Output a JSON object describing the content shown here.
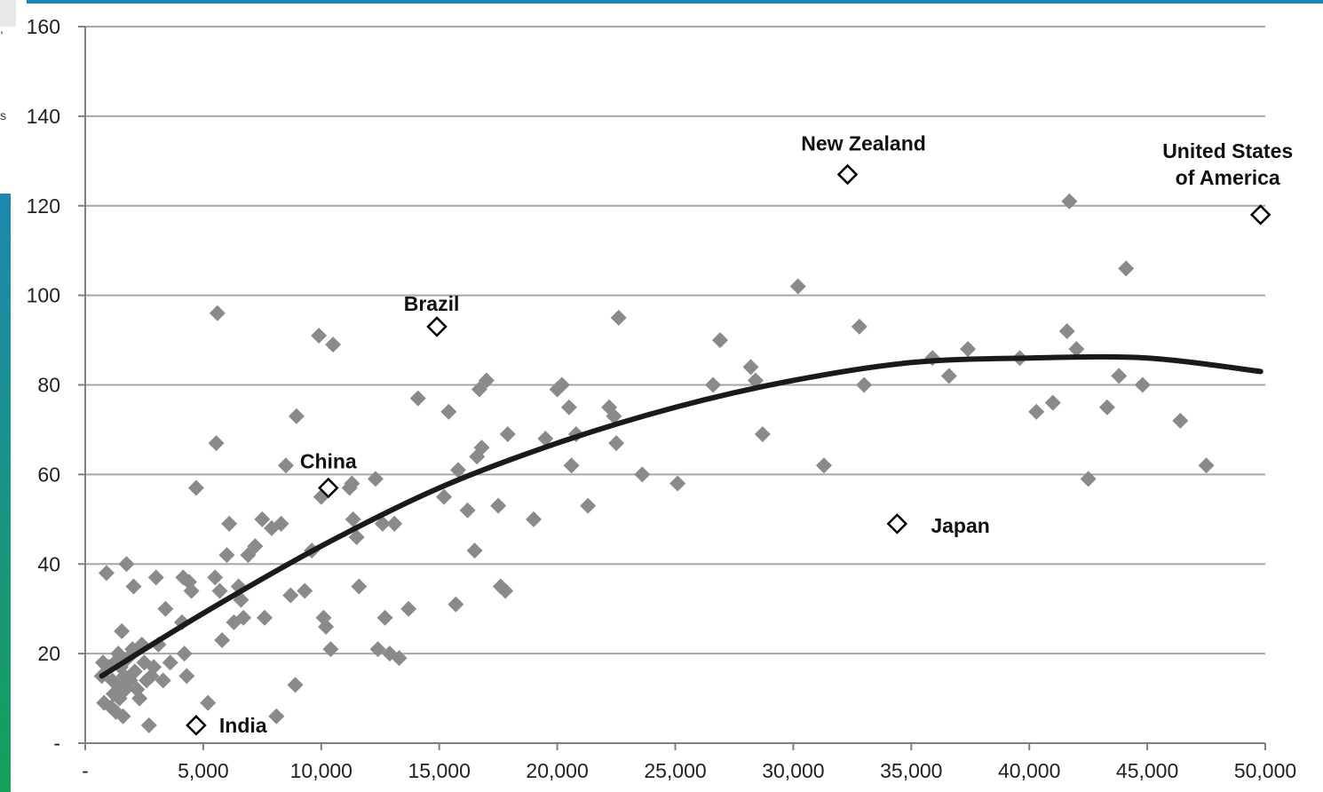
{
  "page": {
    "edge_fragment_1": ",",
    "edge_fragment_2": "s"
  },
  "colors": {
    "grid": "#a6a6a6",
    "axis": "#7f7f7f",
    "points": "#8a8a8a",
    "highlight_stroke": "#000000",
    "trend": "#1a1a1a",
    "accent_bar": "#1b86b3"
  },
  "chart_data": {
    "type": "scatter",
    "xlim": [
      0,
      50000
    ],
    "ylim": [
      0,
      160
    ],
    "grid": true,
    "x_ticks": [
      {
        "value": 0,
        "label": "-"
      },
      {
        "value": 5000,
        "label": "5,000"
      },
      {
        "value": 10000,
        "label": "10,000"
      },
      {
        "value": 15000,
        "label": "15,000"
      },
      {
        "value": 20000,
        "label": "20,000"
      },
      {
        "value": 25000,
        "label": "25,000"
      },
      {
        "value": 30000,
        "label": "30,000"
      },
      {
        "value": 35000,
        "label": "35,000"
      },
      {
        "value": 40000,
        "label": "40,000"
      },
      {
        "value": 45000,
        "label": "45,000"
      },
      {
        "value": 50000,
        "label": "50,000"
      }
    ],
    "y_ticks": [
      {
        "value": 0,
        "label": "-"
      },
      {
        "value": 20,
        "label": "20"
      },
      {
        "value": 40,
        "label": "40"
      },
      {
        "value": 60,
        "label": "60"
      },
      {
        "value": 80,
        "label": "80"
      },
      {
        "value": 100,
        "label": "100"
      },
      {
        "value": 120,
        "label": "120"
      },
      {
        "value": 140,
        "label": "140"
      },
      {
        "value": 160,
        "label": "160"
      }
    ],
    "points": [
      [
        700,
        15
      ],
      [
        750,
        18
      ],
      [
        800,
        9
      ],
      [
        900,
        38
      ],
      [
        1000,
        17
      ],
      [
        1100,
        8
      ],
      [
        1150,
        14
      ],
      [
        1200,
        11
      ],
      [
        1250,
        18
      ],
      [
        1300,
        7
      ],
      [
        1350,
        13
      ],
      [
        1400,
        20
      ],
      [
        1450,
        10
      ],
      [
        1500,
        17
      ],
      [
        1550,
        25
      ],
      [
        1600,
        6
      ],
      [
        1650,
        15
      ],
      [
        1700,
        12
      ],
      [
        1750,
        40
      ],
      [
        1800,
        19
      ],
      [
        1900,
        14
      ],
      [
        2000,
        21
      ],
      [
        2050,
        35
      ],
      [
        2100,
        16
      ],
      [
        2200,
        12
      ],
      [
        2300,
        10
      ],
      [
        2400,
        22
      ],
      [
        2500,
        18
      ],
      [
        2600,
        14
      ],
      [
        2700,
        4
      ],
      [
        2800,
        15
      ],
      [
        2900,
        17
      ],
      [
        3000,
        37
      ],
      [
        3100,
        22
      ],
      [
        3300,
        14
      ],
      [
        3400,
        30
      ],
      [
        3600,
        18
      ],
      [
        4100,
        27
      ],
      [
        4150,
        37
      ],
      [
        4200,
        20
      ],
      [
        4300,
        15
      ],
      [
        4400,
        36
      ],
      [
        4500,
        34
      ],
      [
        4700,
        57
      ],
      [
        5200,
        9
      ],
      [
        5500,
        37
      ],
      [
        5550,
        67
      ],
      [
        5600,
        96
      ],
      [
        5700,
        34
      ],
      [
        5800,
        23
      ],
      [
        6000,
        42
      ],
      [
        6100,
        49
      ],
      [
        6300,
        27
      ],
      [
        6500,
        35
      ],
      [
        6600,
        32
      ],
      [
        6700,
        28
      ],
      [
        6900,
        42
      ],
      [
        7200,
        44
      ],
      [
        7500,
        50
      ],
      [
        7600,
        28
      ],
      [
        7900,
        48
      ],
      [
        8100,
        6
      ],
      [
        8300,
        49
      ],
      [
        8500,
        62
      ],
      [
        8700,
        33
      ],
      [
        8900,
        13
      ],
      [
        8950,
        73
      ],
      [
        9300,
        34
      ],
      [
        9600,
        43
      ],
      [
        9900,
        91
      ],
      [
        10000,
        55
      ],
      [
        10100,
        28
      ],
      [
        10200,
        26
      ],
      [
        10400,
        21
      ],
      [
        10500,
        89
      ],
      [
        11200,
        57
      ],
      [
        11300,
        58
      ],
      [
        11350,
        50
      ],
      [
        11500,
        46
      ],
      [
        11600,
        35
      ],
      [
        12300,
        59
      ],
      [
        12400,
        21
      ],
      [
        12600,
        49
      ],
      [
        12700,
        28
      ],
      [
        12900,
        20
      ],
      [
        13100,
        49
      ],
      [
        13300,
        19
      ],
      [
        13700,
        30
      ],
      [
        14100,
        77
      ],
      [
        15200,
        55
      ],
      [
        15400,
        74
      ],
      [
        15700,
        31
      ],
      [
        15800,
        61
      ],
      [
        16200,
        52
      ],
      [
        16500,
        43
      ],
      [
        16600,
        64
      ],
      [
        16700,
        79
      ],
      [
        16800,
        66
      ],
      [
        17000,
        81
      ],
      [
        17500,
        53
      ],
      [
        17600,
        35
      ],
      [
        17800,
        34
      ],
      [
        17900,
        69
      ],
      [
        19000,
        50
      ],
      [
        19500,
        68
      ],
      [
        20000,
        79
      ],
      [
        20200,
        80
      ],
      [
        20500,
        75
      ],
      [
        20600,
        62
      ],
      [
        20800,
        69
      ],
      [
        21300,
        53
      ],
      [
        22200,
        75
      ],
      [
        22400,
        73
      ],
      [
        22500,
        67
      ],
      [
        22600,
        95
      ],
      [
        23600,
        60
      ],
      [
        25100,
        58
      ],
      [
        26600,
        80
      ],
      [
        26900,
        90
      ],
      [
        28200,
        84
      ],
      [
        28400,
        81
      ],
      [
        28700,
        69
      ],
      [
        30200,
        102
      ],
      [
        31300,
        62
      ],
      [
        32800,
        93
      ],
      [
        33000,
        80
      ],
      [
        35900,
        86
      ],
      [
        36600,
        82
      ],
      [
        37400,
        88
      ],
      [
        39600,
        86
      ],
      [
        40300,
        74
      ],
      [
        41000,
        76
      ],
      [
        41600,
        92
      ],
      [
        41700,
        121
      ],
      [
        42000,
        88
      ],
      [
        42500,
        59
      ],
      [
        43300,
        75
      ],
      [
        43800,
        82
      ],
      [
        44100,
        106
      ],
      [
        44800,
        80
      ],
      [
        46400,
        72
      ],
      [
        47500,
        62
      ]
    ],
    "highlighted": [
      {
        "name": "India",
        "x": 4700,
        "y": 4
      },
      {
        "name": "China",
        "x": 10300,
        "y": 57
      },
      {
        "name": "Brazil",
        "x": 14900,
        "y": 93
      },
      {
        "name": "New Zealand",
        "x": 32300,
        "y": 127
      },
      {
        "name": "Japan",
        "x": 34400,
        "y": 49
      },
      {
        "name": "United States of America",
        "x": 49800,
        "y": 118
      }
    ],
    "trendline": {
      "type": "polynomial",
      "x_start": 700,
      "x_end": 49800,
      "points": [
        [
          700,
          15
        ],
        [
          5000,
          29
        ],
        [
          10000,
          44
        ],
        [
          15000,
          57
        ],
        [
          20000,
          67
        ],
        [
          25000,
          75
        ],
        [
          30000,
          81
        ],
        [
          35000,
          85
        ],
        [
          40000,
          86
        ],
        [
          45000,
          86
        ],
        [
          49800,
          83
        ]
      ]
    },
    "annotations": [
      {
        "text": "India",
        "x": 4700,
        "y": 4
      },
      {
        "text": "China",
        "x": 10300,
        "y": 57
      },
      {
        "text": "Brazil",
        "x": 14900,
        "y": 93
      },
      {
        "text": "New Zealand",
        "x": 32300,
        "y": 127
      },
      {
        "text": "Japan",
        "x": 34400,
        "y": 49
      },
      {
        "text": "United States",
        "x": 49800,
        "y": 118
      },
      {
        "text": "of America",
        "x": 49800,
        "y": 118
      }
    ]
  }
}
